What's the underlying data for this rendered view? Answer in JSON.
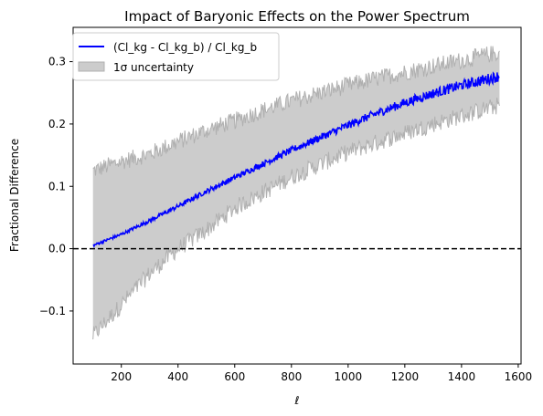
{
  "chart_data": {
    "type": "line",
    "title": "Impact of Baryonic Effects on the Power Spectrum",
    "xlabel": "ℓ",
    "ylabel": "Fractional Difference",
    "xlim": [
      30,
      1610
    ],
    "ylim": [
      -0.185,
      0.355
    ],
    "xticks": [
      200,
      400,
      600,
      800,
      1000,
      1200,
      1400,
      1600
    ],
    "xtick_labels": [
      "200",
      "400",
      "600",
      "800",
      "1000",
      "1200",
      "1400",
      "1600"
    ],
    "yticks": [
      -0.1,
      0.0,
      0.1,
      0.2,
      0.3
    ],
    "ytick_labels": [
      "−0.1",
      "0.0",
      "0.1",
      "0.2",
      "0.3"
    ],
    "grid": false,
    "legend_position": "top-left",
    "reference_line": {
      "y": 0.0,
      "style": "dashed",
      "color": "#000000"
    },
    "series": [
      {
        "name": "(Cl_kg - Cl_kg_b) / Cl_kg_b",
        "kind": "line",
        "color": "#0000ff",
        "x": [
          100,
          200,
          300,
          400,
          500,
          600,
          700,
          800,
          900,
          1000,
          1100,
          1200,
          1300,
          1400,
          1500,
          1535
        ],
        "y": [
          0.005,
          0.023,
          0.045,
          0.068,
          0.092,
          0.114,
          0.136,
          0.158,
          0.178,
          0.198,
          0.217,
          0.234,
          0.249,
          0.262,
          0.273,
          0.277
        ]
      },
      {
        "name": "1σ uncertainty",
        "kind": "band",
        "color": "#cccccc",
        "edge_color": "#b0b0b0",
        "x": [
          100,
          200,
          300,
          400,
          500,
          600,
          700,
          800,
          900,
          1000,
          1100,
          1200,
          1300,
          1400,
          1500,
          1535
        ],
        "lower": [
          -0.14,
          -0.09,
          -0.04,
          0.0,
          0.03,
          0.065,
          0.09,
          0.115,
          0.135,
          0.155,
          0.17,
          0.185,
          0.2,
          0.213,
          0.226,
          0.23
        ],
        "upper": [
          0.125,
          0.14,
          0.152,
          0.172,
          0.19,
          0.205,
          0.222,
          0.237,
          0.25,
          0.262,
          0.273,
          0.283,
          0.293,
          0.302,
          0.312,
          0.314
        ]
      }
    ]
  }
}
